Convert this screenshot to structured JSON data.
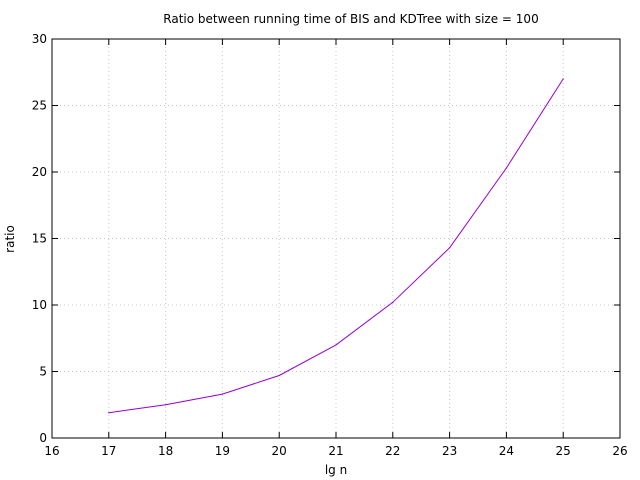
{
  "chart_data": {
    "type": "line",
    "title": "Ratio between running time of BIS and KDTree with size = 100",
    "xlabel": "lg n",
    "ylabel": "ratio",
    "xlim": [
      16,
      26
    ],
    "ylim": [
      0,
      30
    ],
    "x_ticks": [
      16,
      17,
      18,
      19,
      20,
      21,
      22,
      23,
      24,
      25,
      26
    ],
    "y_ticks": [
      0,
      5,
      10,
      15,
      20,
      25,
      30
    ],
    "grid": true,
    "legend": "none",
    "series": [
      {
        "color": "#9400d3",
        "x": [
          17,
          18,
          19,
          20,
          21,
          22,
          23,
          24,
          25
        ],
        "y": [
          1.9,
          2.5,
          3.3,
          4.7,
          7.0,
          10.2,
          14.3,
          20.3,
          27.0
        ]
      }
    ]
  }
}
